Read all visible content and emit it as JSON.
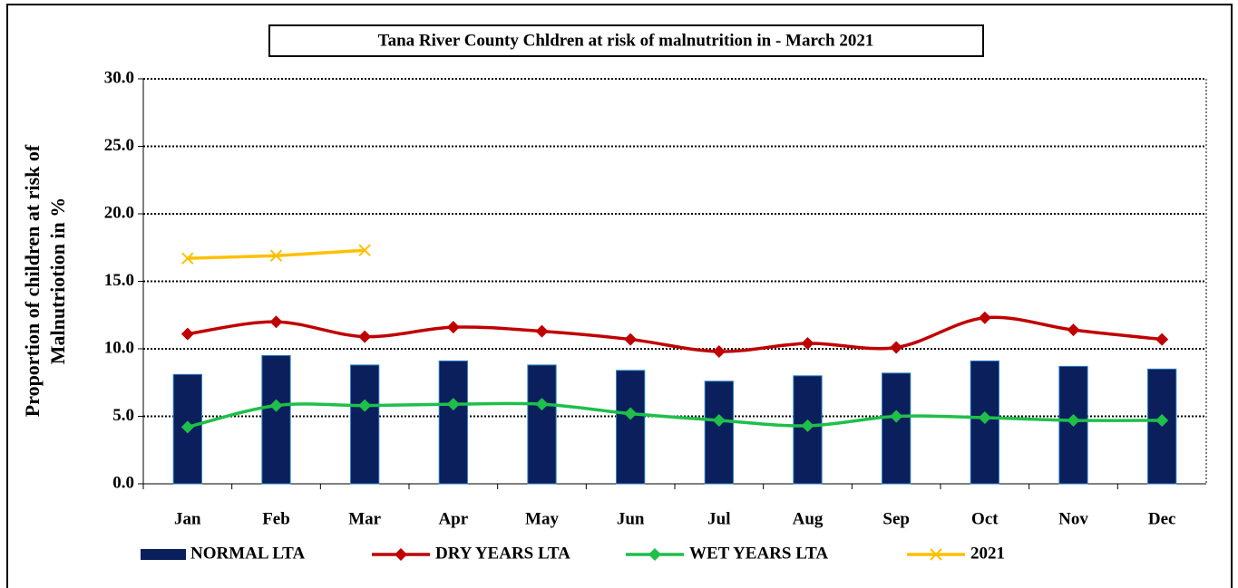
{
  "chart_data": {
    "type": "bar",
    "title": "Tana River County  Chldren at risk of malnutrition in  - March 2021",
    "y_label": [
      "Proportion of children at risk of",
      "Malnutriotion in %"
    ],
    "categories": [
      "Jan",
      "Feb",
      "Mar",
      "Apr",
      "May",
      "Jun",
      "Jul",
      "Aug",
      "Sep",
      "Oct",
      "Nov",
      "Dec"
    ],
    "series": [
      {
        "name": "NORMAL LTA",
        "type": "bar",
        "color": "#0a1f5c",
        "values": [
          8.1,
          9.5,
          8.8,
          9.1,
          8.8,
          8.4,
          7.6,
          8.0,
          8.2,
          9.1,
          8.7,
          8.5
        ]
      },
      {
        "name": "DRY YEARS LTA",
        "type": "line",
        "marker": "diamond",
        "smooth": true,
        "color": "#c00000",
        "values": [
          11.1,
          12.0,
          10.9,
          11.6,
          11.3,
          10.7,
          9.8,
          10.4,
          10.1,
          12.3,
          11.4,
          10.7
        ]
      },
      {
        "name": "WET YEARS LTA",
        "type": "line",
        "marker": "diamond",
        "smooth": true,
        "color": "#1fbf4a",
        "values": [
          4.2,
          5.8,
          5.8,
          5.9,
          5.9,
          5.2,
          4.7,
          4.3,
          5.0,
          4.9,
          4.7,
          4.7
        ]
      },
      {
        "name": "2021",
        "type": "line",
        "marker": "x",
        "smooth": false,
        "color": "#ffc000",
        "values": [
          16.7,
          16.9,
          17.3,
          null,
          null,
          null,
          null,
          null,
          null,
          null,
          null,
          null
        ]
      }
    ],
    "ylim": [
      0,
      30
    ],
    "yticks": [
      {
        "value": 0,
        "label": "0.0"
      },
      {
        "value": 5,
        "label": "5.0"
      },
      {
        "value": 10,
        "label": "10.0"
      },
      {
        "value": 15,
        "label": "15.0"
      },
      {
        "value": 20,
        "label": "20.0"
      },
      {
        "value": 25,
        "label": "25.0"
      },
      {
        "value": 30,
        "label": "30.0"
      }
    ],
    "grid": true,
    "legend": "bottom"
  }
}
